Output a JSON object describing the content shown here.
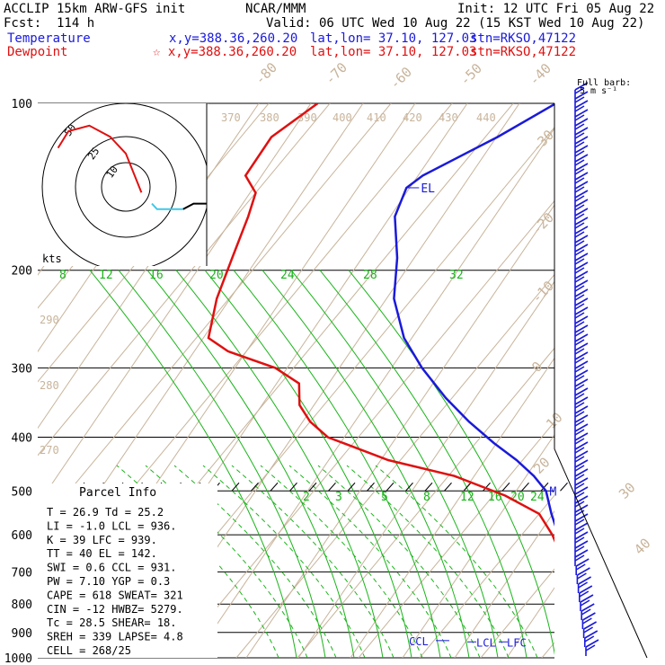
{
  "header": {
    "model": "ACCLIP 15km ARW-GFS init",
    "center": "NCAR/MMM",
    "init": "Init: 12 UTC Fri 05 Aug 22",
    "fcst": "Fcst:  114 h",
    "valid": "Valid: 06 UTC Wed 10 Aug 22 (15 KST Wed 10 Aug 22)",
    "temp_label": "Temperature",
    "temp_xy": "x,y=388.36,260.20",
    "temp_latlon": "lat,lon= 37.10, 127.03",
    "temp_stn": "stn=RKSO,47122",
    "dew_label": "Dewpoint",
    "dew_xy": "☆ x,y=388.36,260.20",
    "dew_latlon": "lat,lon= 37.10, 127.03",
    "dew_stn": "stn=RKSO,47122",
    "barb_label_1": "Full barb:",
    "barb_label_2": "5 m s⁻¹"
  },
  "colors": {
    "temperature": "#1a1adb",
    "dewpoint": "#e01010",
    "isotherm": "#c8b49b",
    "mixing_ratio": "#19b419",
    "barb": "#1a1adb",
    "hodograph_upper": "#e01010",
    "hodograph_mid": "#40c8e8"
  },
  "hodograph": {
    "rings": [
      "50",
      "25",
      "10"
    ],
    "unit": "kts"
  },
  "parcel_info": {
    "title": "Parcel Info",
    "rows": [
      "T  =   26.9  Td =  25.2",
      "LI =   -1.0  LCL =  936.",
      "K  =     39  LFC =  939.",
      "TT =     40  EL  =  142.",
      "SWI =   0.6  CCL =  931.",
      "PW =   7.10  YGP =   0.3",
      "CAPE =  618  SWEAT=   321",
      "CIN  =  -12  HWBZ= 5279.",
      "Tc =   28.5  SHEAR=   18.",
      "SREH =  339  LAPSE=   4.8",
      "CELL = 268/25"
    ]
  },
  "level_labels": {
    "el": "EL",
    "m": "M",
    "ccl": "CCL",
    "lcl": "LCL",
    "lfc": "LFC"
  },
  "chart_data": {
    "type": "line",
    "title": "",
    "xlabel": "",
    "ylabel": "",
    "y_scale": "log-pressure",
    "y_ticks": [
      100,
      200,
      300,
      400,
      500,
      600,
      700,
      800,
      900,
      1000
    ],
    "isotherm_labels": [
      "-80",
      "-70",
      "-60",
      "-50",
      "-40",
      "-30",
      "-20",
      "-10",
      "0",
      "10",
      "20",
      "30",
      "40"
    ],
    "dry_adiabat_labels": [
      "370",
      "380",
      "390",
      "400",
      "410",
      "420",
      "430",
      "440",
      "290",
      "280",
      "270"
    ],
    "mixing_ratio_labels_upper": [
      "8",
      "12",
      "16",
      "20",
      "24",
      "28",
      "32"
    ],
    "mixing_ratio_labels_lower": [
      "2",
      "3",
      "5",
      "8",
      "12",
      "16",
      "20",
      "24"
    ],
    "series": [
      {
        "name": "Temperature",
        "points": [
          [
            -53,
            100
          ],
          [
            -58,
            115
          ],
          [
            -65,
            135
          ],
          [
            -66,
            142
          ],
          [
            -64,
            160
          ],
          [
            -58,
            190
          ],
          [
            -53,
            225
          ],
          [
            -46,
            265
          ],
          [
            -39,
            300
          ],
          [
            -31,
            340
          ],
          [
            -24,
            375
          ],
          [
            -17,
            410
          ],
          [
            -11,
            440
          ],
          [
            -6,
            470
          ],
          [
            -2,
            500
          ],
          [
            2,
            550
          ],
          [
            6,
            600
          ],
          [
            10,
            650
          ],
          [
            14,
            700
          ],
          [
            17,
            750
          ],
          [
            19,
            800
          ],
          [
            22,
            850
          ],
          [
            23,
            870
          ],
          [
            22,
            890
          ],
          [
            23,
            920
          ],
          [
            24,
            950
          ],
          [
            26,
            975
          ],
          [
            27,
            1000
          ]
        ]
      },
      {
        "name": "Dewpoint",
        "points": [
          [
            -92,
            100
          ],
          [
            -95,
            115
          ],
          [
            -94,
            135
          ],
          [
            -90,
            145
          ],
          [
            -88,
            160
          ],
          [
            -85,
            190
          ],
          [
            -82,
            225
          ],
          [
            -78,
            265
          ],
          [
            -73,
            280
          ],
          [
            -63,
            300
          ],
          [
            -57,
            320
          ],
          [
            -54,
            350
          ],
          [
            -50,
            375
          ],
          [
            -45,
            400
          ],
          [
            -32,
            440
          ],
          [
            -19,
            470
          ],
          [
            -8,
            510
          ],
          [
            0,
            550
          ],
          [
            5,
            600
          ],
          [
            9,
            650
          ],
          [
            13,
            700
          ],
          [
            15,
            750
          ],
          [
            15,
            800
          ],
          [
            17,
            850
          ],
          [
            19,
            890
          ],
          [
            22,
            930
          ],
          [
            24,
            960
          ],
          [
            25,
            980
          ]
        ]
      }
    ],
    "hodograph_path": [
      [
        -13,
        7
      ],
      [
        -11,
        10
      ],
      [
        -7,
        11
      ],
      [
        -3,
        9
      ],
      [
        0,
        6
      ],
      [
        3,
        -1
      ],
      [
        5,
        -3
      ],
      [
        6,
        -4
      ],
      [
        11,
        -4
      ],
      [
        13,
        -3
      ],
      [
        16,
        -3
      ],
      [
        18,
        0
      ],
      [
        20,
        2
      ]
    ],
    "wind_barbs": {
      "count": 63,
      "direction_deg": 250,
      "speed_ms": 15
    }
  }
}
